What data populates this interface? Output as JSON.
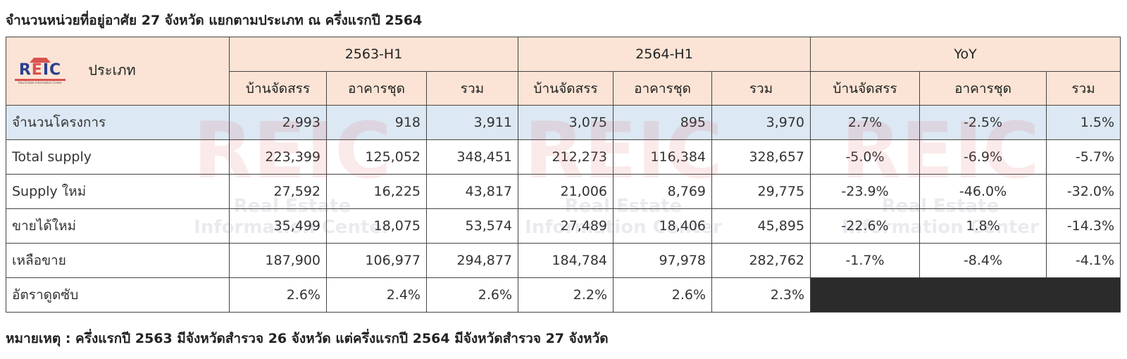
{
  "title": "จำนวนหน่วยที่อยู่อาศัย 27 จังหวัด แยกตามประเภท ณ ครึ่งแรกปี 2564",
  "logo": {
    "text": "REIC",
    "thai": "ศูนย์ข้อมูลอสังหาริมทรัพย์",
    "en": "Real Estate Information Center"
  },
  "header": {
    "type": "ประเภท",
    "groups": [
      "2563-H1",
      "2564-H1",
      "YoY"
    ],
    "subcols": [
      "บ้านจัดสรร",
      "อาคารชุด",
      "รวม"
    ]
  },
  "rows": [
    {
      "label": "จำนวนโครงการ",
      "values": [
        "2,993",
        "918",
        "3,911",
        "3,075",
        "895",
        "3,970",
        "2.7%",
        "-2.5%",
        "1.5%"
      ]
    },
    {
      "label": "Total supply",
      "values": [
        "223,399",
        "125,052",
        "348,451",
        "212,273",
        "116,384",
        "328,657",
        "-5.0%",
        "-6.9%",
        "-5.7%"
      ]
    },
    {
      "label": "Supply ใหม่",
      "values": [
        "27,592",
        "16,225",
        "43,817",
        "21,006",
        "8,769",
        "29,775",
        "-23.9%",
        "-46.0%",
        "-32.0%"
      ]
    },
    {
      "label": "ขายได้ใหม่",
      "values": [
        "35,499",
        "18,075",
        "53,574",
        "27,489",
        "18,406",
        "45,895",
        "-22.6%",
        "1.8%",
        "-14.3%"
      ]
    },
    {
      "label": "เหลือขาย",
      "values": [
        "187,900",
        "106,977",
        "294,877",
        "184,784",
        "97,978",
        "282,762",
        "-1.7%",
        "-8.4%",
        "-4.1%"
      ]
    },
    {
      "label": "อัตราดูดซับ",
      "values": [
        "2.6%",
        "2.4%",
        "2.6%",
        "2.2%",
        "2.6%",
        "2.3%"
      ]
    }
  ],
  "colors": {
    "header_bg": "#fbe4d5",
    "highlight_row": "#dce8f3",
    "blank_cell": "#2b2b2b"
  },
  "note": "หมายเหตุ : ครึ่งแรกปี 2563 มีจังหวัดสำรวจ 26 จังหวัด แต่ครึ่งแรกปี 2564 มีจังหวัดสำรวจ 27 จังหวัด"
}
